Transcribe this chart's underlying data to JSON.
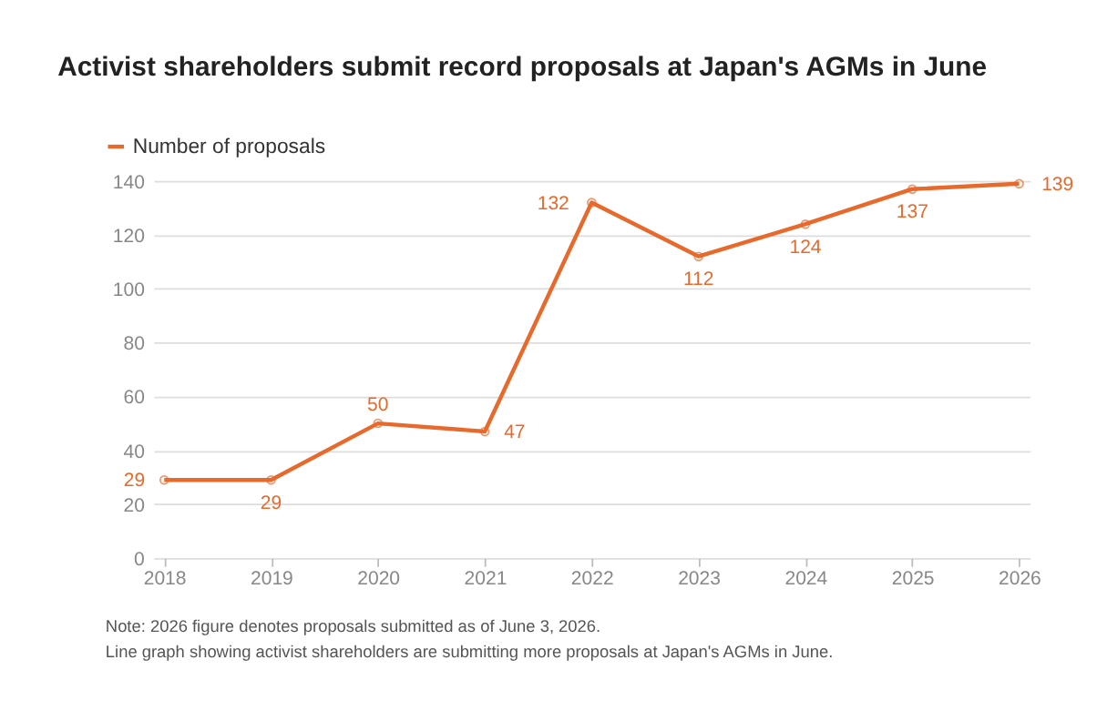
{
  "chart_data": {
    "type": "line",
    "title": "Activist shareholders submit record proposals at Japan's AGMs in June",
    "categories": [
      "2018",
      "2019",
      "2020",
      "2021",
      "2022",
      "2023",
      "2024",
      "2025",
      "2026"
    ],
    "series": [
      {
        "name": "Number of proposals",
        "color": "#e8692c",
        "values": [
          29,
          29,
          50,
          47,
          132,
          112,
          124,
          137,
          139
        ]
      }
    ],
    "ylim": [
      0,
      140
    ],
    "yticks": [
      0,
      20,
      40,
      60,
      80,
      100,
      120,
      140
    ],
    "grid": "y",
    "legend": "top left",
    "marker": "circle",
    "line_style": "solid",
    "data_labels": true,
    "annotations": [
      "Note: 2026 figure denotes proposals submitted as of June 3, 2026.",
      "Line graph showing activist shareholders are submitting more proposals at Japan's AGMs in June."
    ]
  }
}
